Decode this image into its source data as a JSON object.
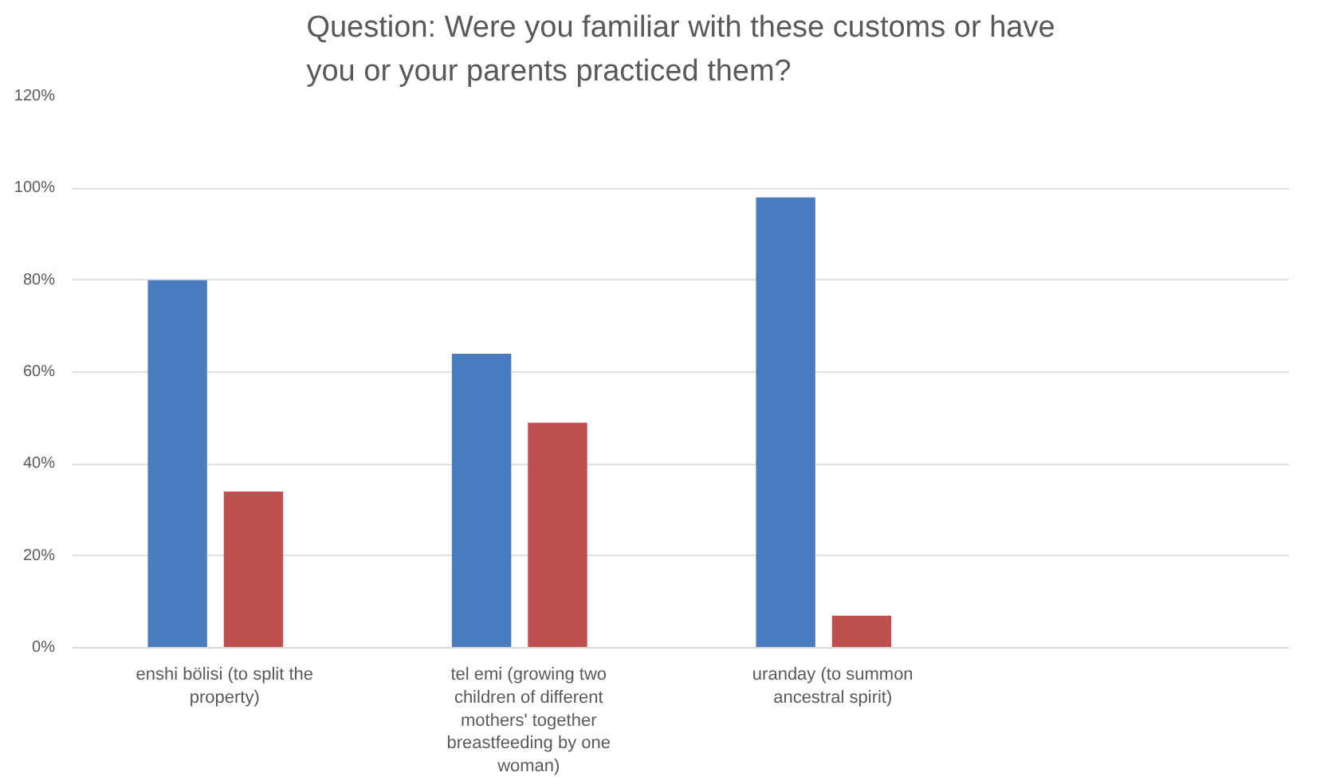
{
  "chart_data": {
    "type": "bar",
    "title": "Question: Were you familiar with these customs or have you or your parents practiced them?",
    "categories": [
      "enshi bölisi (to split the property)",
      "tel emi (growing two children of different mothers' together breastfeeding by one woman)",
      "uranday (to summon ancestral spirit)",
      null
    ],
    "series": [
      {
        "color": "#4a7cc0",
        "values": [
          80,
          64,
          98,
          null
        ]
      },
      {
        "color": "#c0504d",
        "values": [
          34,
          49,
          7,
          null
        ]
      }
    ],
    "ylim": [
      0,
      120
    ],
    "yticks": [
      {
        "value": 0,
        "label": "0%"
      },
      {
        "value": 20,
        "label": "20%"
      },
      {
        "value": 40,
        "label": "40%"
      },
      {
        "value": 60,
        "label": "60%"
      },
      {
        "value": 80,
        "label": "80%"
      },
      {
        "value": 100,
        "label": "100%"
      },
      {
        "value": 120,
        "label": "120%"
      }
    ],
    "grid": "y"
  }
}
